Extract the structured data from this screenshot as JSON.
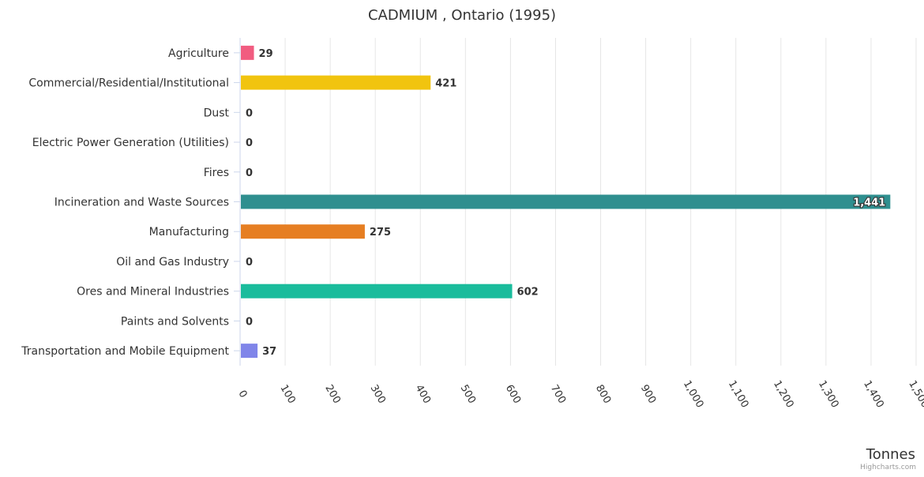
{
  "chart_data": {
    "type": "bar",
    "orientation": "horizontal",
    "title": "CADMIUM , Ontario (1995)",
    "xlabel": "Tonnes",
    "ylabel": "",
    "xlim": [
      0,
      1500
    ],
    "ticks": [
      "0",
      "100",
      "200",
      "300",
      "400",
      "500",
      "600",
      "700",
      "800",
      "900",
      "1,000",
      "1,100",
      "1,200",
      "1,300",
      "1,400",
      "1,500"
    ],
    "tick_values": [
      0,
      100,
      200,
      300,
      400,
      500,
      600,
      700,
      800,
      900,
      1000,
      1100,
      1200,
      1300,
      1400,
      1500
    ],
    "grid": true,
    "legend": false,
    "categories": [
      "Agriculture",
      "Commercial/Residential/Institutional",
      "Dust",
      "Electric Power Generation (Utilities)",
      "Fires",
      "Incineration and Waste Sources",
      "Manufacturing",
      "Oil and Gas Industry",
      "Ores and Mineral Industries",
      "Paints and Solvents",
      "Transportation and Mobile Equipment"
    ],
    "values": [
      29,
      421,
      0,
      0,
      0,
      1441,
      275,
      0,
      602,
      0,
      37
    ],
    "value_labels": [
      "29",
      "421",
      "0",
      "0",
      "0",
      "1,441",
      "275",
      "0",
      "602",
      "0",
      "37"
    ],
    "colors": [
      "#f15c80",
      "#f1c40f",
      "#434348",
      "#90ed7d",
      "#8085e9",
      "#2f8f8f",
      "#e67e22",
      "#7cb5ec",
      "#1abc9c",
      "#f7a35c",
      "#8085e9"
    ],
    "credits": "Highcharts.com"
  }
}
